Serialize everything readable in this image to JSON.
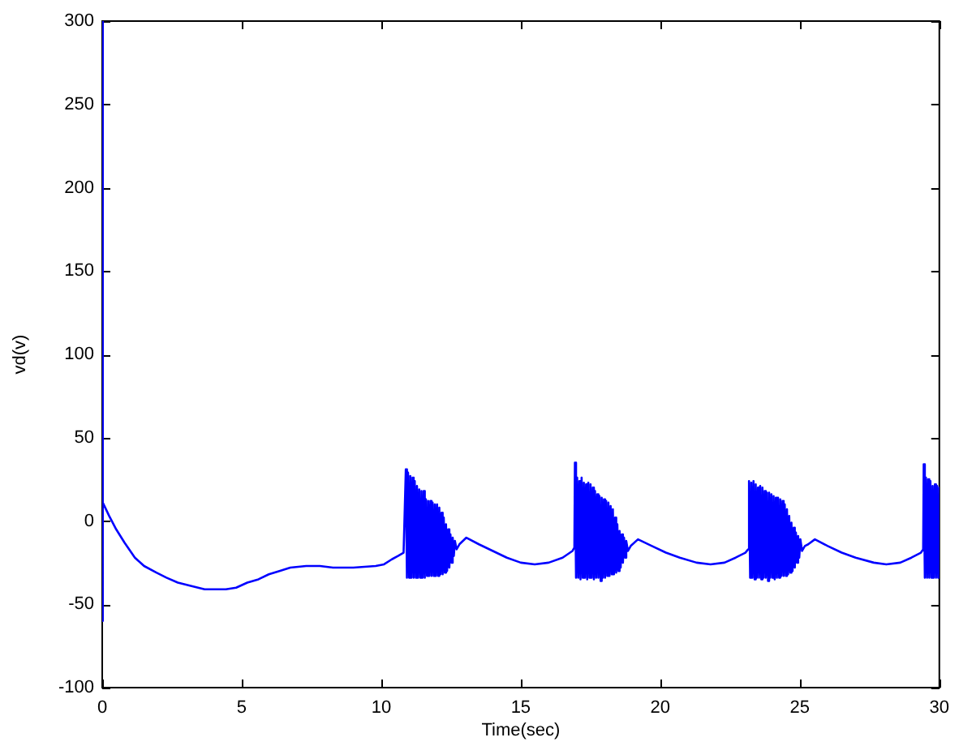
{
  "chart_data": {
    "type": "line",
    "xlabel": "Time(sec)",
    "ylabel": "vd(v)",
    "color": "#0000ff",
    "marker": "none",
    "xlim": [
      0,
      30
    ],
    "ylim": [
      -100,
      300
    ],
    "xticks": [
      0,
      5,
      10,
      15,
      20,
      25,
      30
    ],
    "yticks": [
      -100,
      -50,
      0,
      50,
      100,
      150,
      200,
      250,
      300
    ],
    "x": [
      0,
      0.01,
      0.03,
      0.25,
      0.5,
      0.8,
      1.17,
      1.5,
      1.94,
      2.3,
      2.71,
      3.2,
      3.67,
      4.43,
      4.8,
      5.2,
      5.6,
      5.97,
      6.35,
      6.74,
      7.31,
      7.8,
      8.27,
      9.0,
      9.8,
      10.1,
      10.38,
      10.6,
      10.8,
      10.88,
      10.92,
      10.96,
      11.0,
      11.04,
      11.08,
      11.12,
      11.16,
      11.2,
      11.24,
      11.28,
      11.32,
      11.36,
      11.4,
      11.44,
      11.48,
      11.52,
      11.56,
      11.6,
      11.64,
      11.68,
      11.72,
      11.76,
      11.8,
      11.84,
      11.88,
      11.92,
      11.96,
      12.0,
      12.04,
      12.08,
      12.12,
      12.16,
      12.2,
      12.24,
      12.28,
      12.32,
      12.36,
      12.4,
      12.44,
      12.48,
      12.52,
      12.56,
      12.6,
      12.64,
      12.7,
      12.8,
      13.05,
      13.5,
      14.0,
      14.5,
      15.0,
      15.5,
      16.0,
      16.5,
      16.85,
      16.92,
      16.94,
      16.98,
      17.02,
      17.06,
      17.1,
      17.14,
      17.18,
      17.22,
      17.26,
      17.3,
      17.34,
      17.38,
      17.42,
      17.46,
      17.5,
      17.54,
      17.58,
      17.62,
      17.66,
      17.7,
      17.74,
      17.78,
      17.82,
      17.86,
      17.9,
      17.94,
      17.98,
      18.02,
      18.06,
      18.1,
      18.14,
      18.18,
      18.22,
      18.26,
      18.3,
      18.34,
      18.38,
      18.42,
      18.46,
      18.5,
      18.54,
      18.58,
      18.62,
      18.66,
      18.7,
      18.74,
      18.78,
      18.84,
      18.94,
      19.2,
      19.7,
      20.2,
      20.7,
      21.3,
      21.8,
      22.3,
      22.7,
      23.05,
      23.15,
      23.18,
      23.22,
      23.26,
      23.3,
      23.34,
      23.38,
      23.42,
      23.46,
      23.5,
      23.54,
      23.58,
      23.62,
      23.66,
      23.7,
      23.74,
      23.78,
      23.82,
      23.86,
      23.9,
      23.94,
      23.98,
      24.02,
      24.06,
      24.1,
      24.14,
      24.18,
      24.22,
      24.26,
      24.3,
      24.34,
      24.38,
      24.42,
      24.46,
      24.5,
      24.54,
      24.58,
      24.62,
      24.66,
      24.7,
      24.74,
      24.78,
      24.82,
      24.86,
      24.9,
      24.94,
      24.98,
      25.02,
      25.08,
      25.18,
      25.3,
      25.54,
      26.0,
      26.5,
      27.0,
      27.65,
      28.1,
      28.6,
      29.0,
      29.34,
      29.42,
      29.44,
      29.48,
      29.52,
      29.56,
      29.6,
      29.64,
      29.68,
      29.72,
      29.76,
      29.8,
      29.84,
      29.88,
      29.92,
      29.96,
      30
    ],
    "values": [
      300,
      -60,
      11,
      3,
      -5,
      -13,
      -22,
      -27,
      -31,
      -34,
      -37,
      -39,
      -41,
      -41,
      -40,
      -37,
      -35,
      -32,
      -30,
      -28,
      -27,
      -27,
      -28,
      -28,
      -27,
      -26,
      -23,
      -21,
      -19,
      31,
      -34,
      29,
      -34,
      27,
      -34,
      26,
      -34,
      24,
      -34,
      21,
      -34,
      19,
      -34,
      18,
      -34,
      18,
      -34,
      13,
      -33,
      12,
      -33,
      12,
      -33,
      11,
      -33,
      10,
      -33,
      10,
      -33,
      8,
      -32,
      5,
      -32,
      2,
      -31,
      -2,
      -30,
      -5,
      -28,
      -8,
      -25,
      -10,
      -21,
      -12,
      -17,
      -14,
      -10,
      -14,
      -18,
      -22,
      -25,
      -26,
      -25,
      -22,
      -18,
      -16,
      35,
      -34,
      26,
      -34,
      24,
      -35,
      26,
      -34,
      23,
      -34,
      22,
      -35,
      23,
      -34,
      22,
      -34,
      20,
      -35,
      18,
      -34,
      16,
      -34,
      15,
      -36,
      14,
      -34,
      13,
      -34,
      12,
      -33,
      11,
      -33,
      9,
      -32,
      7,
      -32,
      2,
      -31,
      -2,
      -30,
      -6,
      -28,
      -8,
      -25,
      -10,
      -22,
      -12,
      -18,
      -15,
      -11,
      -15,
      -19,
      -22,
      -25,
      -26,
      -25,
      -22,
      -19,
      -17,
      24,
      -34,
      23,
      -34,
      24,
      -35,
      22,
      -34,
      20,
      -34,
      21,
      -35,
      20,
      -34,
      18,
      -34,
      17,
      -36,
      17,
      -34,
      16,
      -34,
      15,
      -35,
      14,
      -34,
      14,
      -34,
      13,
      -33,
      12,
      -33,
      10,
      -33,
      7,
      -32,
      3,
      -31,
      -1,
      -30,
      -4,
      -28,
      -7,
      -25,
      -9,
      -22,
      -11,
      -18,
      -15,
      -14,
      -11,
      -15,
      -19,
      -22,
      -25,
      -26,
      -25,
      -22,
      -19,
      -17,
      34,
      -34,
      26,
      -34,
      25,
      -34,
      24,
      -34,
      21,
      -34,
      22,
      -34,
      21,
      -34,
      20
    ]
  }
}
